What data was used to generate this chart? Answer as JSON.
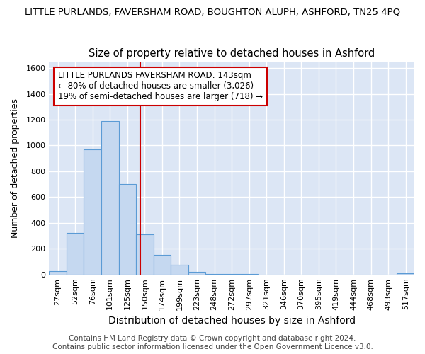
{
  "title1": "LITTLE PURLANDS, FAVERSHAM ROAD, BOUGHTON ALUPH, ASHFORD, TN25 4PQ",
  "title2": "Size of property relative to detached houses in Ashford",
  "xlabel": "Distribution of detached houses by size in Ashford",
  "ylabel": "Number of detached properties",
  "bin_labels": [
    "27sqm",
    "52sqm",
    "76sqm",
    "101sqm",
    "125sqm",
    "150sqm",
    "174sqm",
    "199sqm",
    "223sqm",
    "248sqm",
    "272sqm",
    "297sqm",
    "321sqm",
    "346sqm",
    "370sqm",
    "395sqm",
    "419sqm",
    "444sqm",
    "468sqm",
    "493sqm",
    "517sqm"
  ],
  "bar_values": [
    25,
    320,
    970,
    1190,
    700,
    310,
    150,
    75,
    20,
    5,
    5,
    3,
    0,
    0,
    0,
    0,
    0,
    0,
    0,
    0,
    10
  ],
  "bar_color": "#c5d8f0",
  "bar_edge_color": "#5b9bd5",
  "plot_bg_color": "#dce6f5",
  "fig_bg_color": "#ffffff",
  "grid_color": "#ffffff",
  "vline_color": "#cc0000",
  "annotation_line1": "LITTLE PURLANDS FAVERSHAM ROAD: 143sqm",
  "annotation_line2": "← 80% of detached houses are smaller (3,026)",
  "annotation_line3": "19% of semi-detached houses are larger (718) →",
  "annotation_box_facecolor": "#ffffff",
  "annotation_box_edgecolor": "#cc0000",
  "footer1": "Contains HM Land Registry data © Crown copyright and database right 2024.",
  "footer2": "Contains public sector information licensed under the Open Government Licence v3.0.",
  "ylim": [
    0,
    1650
  ],
  "yticks": [
    0,
    200,
    400,
    600,
    800,
    1000,
    1200,
    1400,
    1600
  ],
  "title1_fontsize": 9.5,
  "title2_fontsize": 10.5,
  "xlabel_fontsize": 10,
  "ylabel_fontsize": 9,
  "tick_fontsize": 8,
  "annotation_fontsize": 8.5,
  "footer_fontsize": 7.5
}
